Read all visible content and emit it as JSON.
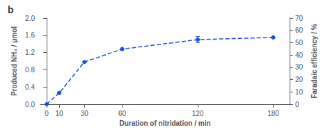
{
  "chart_data": {
    "type": "line",
    "title": "b",
    "x": [
      0,
      10,
      30,
      60,
      120,
      180
    ],
    "values": [
      0.0,
      0.26,
      0.98,
      1.28,
      1.5,
      1.55
    ],
    "errors": [
      0.0,
      0.0,
      0.0,
      0.0,
      0.07,
      0.0
    ],
    "color": "#2050d0",
    "marker": "circle",
    "line_style": "dashed",
    "xlabel": "Duration of nitridation / min",
    "ylabel": "Produced NH₃ / μmol",
    "y2label": "Faradaic efficiency / %",
    "xlim": [
      -5,
      193
    ],
    "xticks": [
      0,
      10,
      30,
      60,
      120,
      180
    ],
    "ylim": [
      0,
      2.0
    ],
    "yticks": [
      {
        "value": 0,
        "label": "0.0"
      },
      0.4,
      0.8,
      1.2,
      1.6,
      {
        "value": 2,
        "label": "2.0"
      }
    ],
    "y2lim": [
      0,
      70
    ],
    "y2ticks": [
      0,
      10,
      20,
      30,
      40,
      50,
      60,
      70
    ],
    "grid": false
  }
}
